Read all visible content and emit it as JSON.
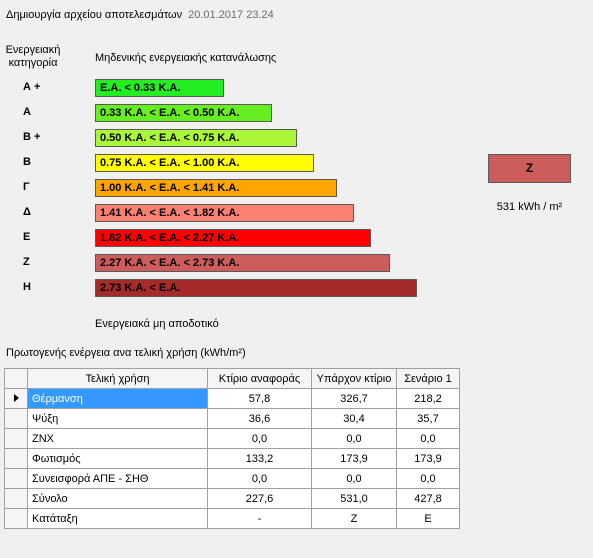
{
  "header": {
    "title": "Δημιουργία αρχείου αποτελεσμάτων",
    "timestamp": "20.01.2017 23.24"
  },
  "scale": {
    "category_header": "Ενεργειακή κατηγορία",
    "top_label": "Μηδενικής ενεργειακής κατανάλωσης",
    "bottom_label": "Ενεργειακά μη αποδοτικό",
    "classes": [
      {
        "label": "Α +",
        "range": "Ε.Α. < 0.33 Κ.Α.",
        "color": "#22ee22"
      },
      {
        "label": "Α",
        "range": "0.33 Κ.Α. <  Ε.Α. < 0.50 Κ.Α.",
        "color": "#66ee22"
      },
      {
        "label": "Β +",
        "range": "0.50 Κ.Α. <  Ε.Α. < 0.75 Κ.Α.",
        "color": "#aaf73a"
      },
      {
        "label": "Β",
        "range": "0.75 Κ.Α. <  Ε.Α. < 1.00 Κ.Α.",
        "color": "#ffff00"
      },
      {
        "label": "Γ",
        "range": "1.00 Κ.Α. <  Ε.Α. < 1.41 Κ.Α.",
        "color": "#ffa500"
      },
      {
        "label": "Δ",
        "range": "1.41 Κ.Α. <  Ε.Α. < 1.82 Κ.Α.",
        "color": "#fa8072"
      },
      {
        "label": "Ε",
        "range": "1.82 Κ.Α. <  Ε.Α. < 2.27 Κ.Α.",
        "color": "#ff0000"
      },
      {
        "label": "Ζ",
        "range": "2.27 Κ.Α. <  Ε.Α. < 2.73 Κ.Α.",
        "color": "#cd5c5c"
      },
      {
        "label": "Η",
        "range": "2.73 Κ.Α. <  Ε.Α.",
        "color": "#a52a2a"
      }
    ]
  },
  "result": {
    "class": "Ζ",
    "color": "#cd5c5c",
    "value": "531 kWh / m²"
  },
  "table": {
    "title": "Πρωτογενής ενέργεια ανα τελική χρήση (kWh/m²)",
    "columns": [
      "Τελική χρήση",
      "Κτίριο αναφοράς",
      "Υπάρχον κτίριο",
      "Σενάριο 1"
    ],
    "rows": [
      {
        "name": "Θέρμανση",
        "values": [
          "57,8",
          "326,7",
          "218,2"
        ],
        "selected": true
      },
      {
        "name": "Ψύξη",
        "values": [
          "36,6",
          "30,4",
          "35,7"
        ]
      },
      {
        "name": "ΖΝΧ",
        "values": [
          "0,0",
          "0,0",
          "0,0"
        ]
      },
      {
        "name": "Φωτισμός",
        "values": [
          "133,2",
          "173,9",
          "173,9"
        ]
      },
      {
        "name": "Συνεισφορά ΑΠΕ - ΣΗΘ",
        "values": [
          "0,0",
          "0,0",
          "0,0"
        ]
      },
      {
        "name": "Σύνολο",
        "values": [
          "227,6",
          "531,0",
          "427,8"
        ]
      },
      {
        "name": "Κατάταξη",
        "values": [
          "-",
          "Ζ",
          "Ε"
        ]
      }
    ]
  }
}
